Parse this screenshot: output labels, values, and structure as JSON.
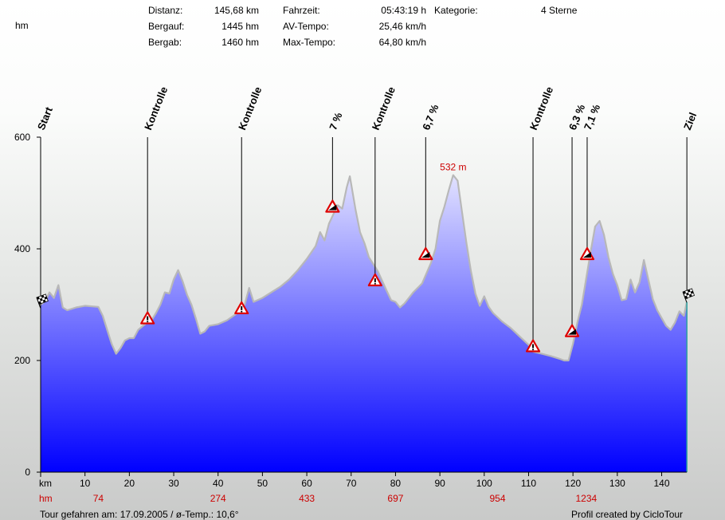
{
  "stats": {
    "distance_label": "Distanz:",
    "distance_value": "145,68 km",
    "ascent_label": "Bergauf:",
    "ascent_value": "1445 hm",
    "descent_label": "Bergab:",
    "descent_value": "1460 hm",
    "time_label": "Fahrzeit:",
    "time_value": "05:43:19 h",
    "avg_label": "AV-Tempo:",
    "avg_value": "25,46 km/h",
    "max_label": "Max-Tempo:",
    "max_value": "64,80 km/h",
    "category_label": "Kategorie:",
    "category_value": "4 Sterne"
  },
  "footer": {
    "tour_info": "Tour gefahren am: 17.09.2005  /  ø-Temp.: 10,6°",
    "credit": "Profil created by CicloTour"
  },
  "colors": {
    "fill_top": "#ffffff",
    "fill_bottom": "#0000ff",
    "outline": "#b8b8b8",
    "accent_red": "#cc0000",
    "marker_line": "#000000"
  },
  "chart_data": {
    "type": "area",
    "ylabel": "hm",
    "xlabel": "km",
    "xlim": [
      0,
      145.68
    ],
    "ylim": [
      0,
      600
    ],
    "yticks": [
      0,
      200,
      400,
      600
    ],
    "xticks": [
      10,
      20,
      30,
      40,
      50,
      60,
      70,
      80,
      90,
      100,
      110,
      120,
      130,
      140
    ],
    "cumulative_ascent_row": [
      {
        "km": 13,
        "hm": "74"
      },
      {
        "km": 40,
        "hm": "274"
      },
      {
        "km": 60,
        "hm": "433"
      },
      {
        "km": 80,
        "hm": "697"
      },
      {
        "km": 103,
        "hm": "954"
      },
      {
        "km": 123,
        "hm": "1234"
      }
    ],
    "max_label": {
      "km": 93,
      "elev": 532,
      "text": "532 m"
    },
    "profile": [
      [
        0,
        300
      ],
      [
        1,
        306
      ],
      [
        2,
        322
      ],
      [
        3,
        312
      ],
      [
        4,
        335
      ],
      [
        5,
        295
      ],
      [
        6,
        290
      ],
      [
        8,
        295
      ],
      [
        10,
        298
      ],
      [
        13,
        296
      ],
      [
        14,
        280
      ],
      [
        15,
        255
      ],
      [
        16,
        230
      ],
      [
        17,
        212
      ],
      [
        18,
        222
      ],
      [
        19,
        236
      ],
      [
        20,
        240
      ],
      [
        21,
        240
      ],
      [
        22,
        255
      ],
      [
        24,
        268
      ],
      [
        25,
        272
      ],
      [
        26,
        285
      ],
      [
        27,
        300
      ],
      [
        28,
        322
      ],
      [
        29,
        320
      ],
      [
        30,
        345
      ],
      [
        31,
        362
      ],
      [
        32,
        342
      ],
      [
        33,
        318
      ],
      [
        34,
        300
      ],
      [
        35,
        275
      ],
      [
        36,
        248
      ],
      [
        37,
        252
      ],
      [
        38,
        262
      ],
      [
        40,
        265
      ],
      [
        42,
        272
      ],
      [
        44,
        283
      ],
      [
        45,
        290
      ],
      [
        46,
        300
      ],
      [
        47,
        330
      ],
      [
        48,
        305
      ],
      [
        50,
        312
      ],
      [
        52,
        322
      ],
      [
        54,
        332
      ],
      [
        56,
        345
      ],
      [
        58,
        362
      ],
      [
        60,
        382
      ],
      [
        62,
        405
      ],
      [
        63,
        430
      ],
      [
        64,
        415
      ],
      [
        65,
        445
      ],
      [
        66,
        462
      ],
      [
        67,
        478
      ],
      [
        68,
        472
      ],
      [
        69,
        510
      ],
      [
        69.7,
        530
      ],
      [
        70,
        516
      ],
      [
        71,
        470
      ],
      [
        72,
        430
      ],
      [
        73,
        410
      ],
      [
        74,
        385
      ],
      [
        76,
        360
      ],
      [
        78,
        325
      ],
      [
        79,
        308
      ],
      [
        80,
        305
      ],
      [
        81,
        295
      ],
      [
        82,
        302
      ],
      [
        84,
        322
      ],
      [
        86,
        338
      ],
      [
        88,
        375
      ],
      [
        89,
        400
      ],
      [
        90,
        450
      ],
      [
        91,
        475
      ],
      [
        92,
        505
      ],
      [
        93,
        532
      ],
      [
        94,
        522
      ],
      [
        95,
        465
      ],
      [
        96,
        410
      ],
      [
        97,
        360
      ],
      [
        98,
        320
      ],
      [
        99,
        298
      ],
      [
        100,
        315
      ],
      [
        101,
        296
      ],
      [
        102,
        285
      ],
      [
        104,
        270
      ],
      [
        106,
        258
      ],
      [
        108,
        243
      ],
      [
        110,
        228
      ],
      [
        111,
        216
      ],
      [
        113,
        212
      ],
      [
        115,
        208
      ],
      [
        117,
        203
      ],
      [
        118,
        200
      ],
      [
        119,
        200
      ],
      [
        120,
        230
      ],
      [
        121,
        268
      ],
      [
        122,
        300
      ],
      [
        123,
        348
      ],
      [
        124,
        395
      ],
      [
        125,
        440
      ],
      [
        126,
        450
      ],
      [
        127,
        425
      ],
      [
        128,
        385
      ],
      [
        129,
        355
      ],
      [
        130,
        335
      ],
      [
        131,
        308
      ],
      [
        132,
        310
      ],
      [
        133,
        345
      ],
      [
        134,
        322
      ],
      [
        135,
        340
      ],
      [
        136,
        380
      ],
      [
        137,
        345
      ],
      [
        138,
        310
      ],
      [
        139,
        290
      ],
      [
        140,
        276
      ],
      [
        141,
        262
      ],
      [
        142,
        255
      ],
      [
        143,
        268
      ],
      [
        144,
        288
      ],
      [
        145,
        280
      ],
      [
        145.68,
        305
      ]
    ],
    "waypoints": [
      {
        "km": 0,
        "elev": 300,
        "label": "Start",
        "icon": "start-flag-icon"
      },
      {
        "km": 24.1,
        "elev": 275,
        "label": "Kontrolle",
        "icon": "warning-icon"
      },
      {
        "km": 45.3,
        "elev": 293,
        "label": "Kontrolle",
        "icon": "warning-icon"
      },
      {
        "km": 65.8,
        "elev": 475,
        "label": "7 %",
        "icon": "climb-icon"
      },
      {
        "km": 75.4,
        "elev": 343,
        "label": "Kontrolle",
        "icon": "warning-icon"
      },
      {
        "km": 86.8,
        "elev": 390,
        "label": "6,7 %",
        "icon": "climb-icon"
      },
      {
        "km": 111.0,
        "elev": 225,
        "label": "Kontrolle",
        "icon": "warning-icon"
      },
      {
        "km": 119.8,
        "elev": 252,
        "label": "6,3 %",
        "icon": "climb-icon"
      },
      {
        "km": 123.2,
        "elev": 390,
        "label": "7,1 %",
        "icon": "climb-icon"
      },
      {
        "km": 145.68,
        "elev": 310,
        "label": "Ziel",
        "icon": "finish-flag-icon"
      }
    ]
  }
}
